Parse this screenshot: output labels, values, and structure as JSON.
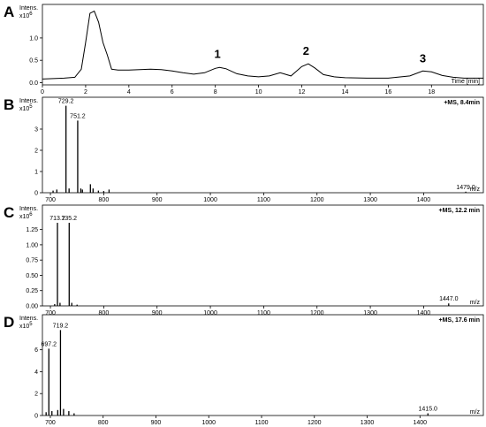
{
  "chart_data": [
    {
      "type": "line",
      "panel": "A",
      "y_unit": "Intens.",
      "y_scale": "x10",
      "y_exponent": 6,
      "xlabel": "Time [min]",
      "color": "#000000",
      "x": [
        0,
        0.5,
        1,
        1.5,
        1.8,
        2.0,
        2.2,
        2.4,
        2.6,
        2.8,
        3.0,
        3.2,
        3.5,
        4,
        4.5,
        5,
        5.5,
        6,
        6.5,
        7,
        7.5,
        8,
        8.2,
        8.5,
        9,
        9.5,
        10,
        10.5,
        11,
        11.5,
        12,
        12.3,
        12.6,
        13,
        13.5,
        14,
        15,
        16,
        17,
        17.6,
        18,
        18.5,
        19,
        19.5,
        20.4
      ],
      "values": [
        0.08,
        0.09,
        0.1,
        0.12,
        0.3,
        0.9,
        1.55,
        1.6,
        1.35,
        0.9,
        0.62,
        0.3,
        0.28,
        0.28,
        0.29,
        0.3,
        0.29,
        0.26,
        0.22,
        0.19,
        0.22,
        0.32,
        0.34,
        0.31,
        0.2,
        0.15,
        0.13,
        0.15,
        0.22,
        0.15,
        0.36,
        0.42,
        0.33,
        0.18,
        0.13,
        0.11,
        0.1,
        0.1,
        0.15,
        0.26,
        0.24,
        0.16,
        0.12,
        0.1,
        0.1
      ],
      "xlim": [
        0,
        20.4
      ],
      "ylim": [
        -0.05,
        1.75
      ],
      "xticks": [
        0,
        2,
        4,
        6,
        8,
        10,
        12,
        14,
        16,
        18
      ],
      "yticks": [
        {
          "value": 0,
          "label": "0.0"
        },
        {
          "value": 0.5,
          "label": "0.5"
        },
        {
          "value": 1,
          "label": "1.0"
        }
      ],
      "annotations": [
        "1",
        "2",
        "3"
      ]
    },
    {
      "type": "stick",
      "panel": "B",
      "y_unit": "Intens.",
      "y_scale": "x10",
      "y_exponent": 5,
      "xlabel": "m/z",
      "spectrum_label": "+MS, 8.4min",
      "color": "#000000",
      "x": [
        705,
        712,
        729.2,
        735,
        751.2,
        757,
        760,
        775,
        780,
        790,
        800,
        810,
        1479.0
      ],
      "values": [
        0.1,
        0.15,
        4.1,
        0.2,
        3.4,
        0.2,
        0.15,
        0.4,
        0.2,
        0.1,
        0.08,
        0.15,
        0.05
      ],
      "peak_labels": [
        null,
        null,
        "729.2",
        null,
        "751.2",
        null,
        null,
        null,
        null,
        null,
        null,
        null,
        "1479.0"
      ],
      "xlim": [
        685,
        1512
      ],
      "ylim": [
        0,
        4.5
      ],
      "xticks": [
        700,
        800,
        900,
        1000,
        1100,
        1200,
        1300,
        1400
      ],
      "yticks": [
        0,
        1,
        2,
        3
      ]
    },
    {
      "type": "stick",
      "panel": "C",
      "y_unit": "Intens.",
      "y_scale": "x10",
      "y_exponent": 6,
      "xlabel": "m/z",
      "spectrum_label": "+MS, 12.2 min",
      "color": "#000000",
      "x": [
        708,
        713.2,
        718,
        735.2,
        740,
        750,
        1447.0
      ],
      "values": [
        0.03,
        1.36,
        0.05,
        1.36,
        0.05,
        0.02,
        0.04
      ],
      "peak_labels": [
        null,
        "713.2",
        null,
        "735.2",
        null,
        null,
        "1447.0"
      ],
      "xlim": [
        685,
        1512
      ],
      "ylim": [
        0,
        1.65
      ],
      "xticks": [
        700,
        800,
        900,
        1000,
        1100,
        1200,
        1300,
        1400
      ],
      "yticks": [
        {
          "value": 0,
          "label": "0.00"
        },
        {
          "value": 0.25,
          "label": "0.25"
        },
        {
          "value": 0.5,
          "label": "0.50"
        },
        {
          "value": 0.75,
          "label": "0.75"
        },
        {
          "value": 1,
          "label": "1.00"
        },
        {
          "value": 1.25,
          "label": "1.25"
        }
      ]
    },
    {
      "type": "stick",
      "panel": "D",
      "y_unit": "Intens.",
      "y_scale": "x10",
      "y_exponent": 5,
      "xlabel": "m/z",
      "spectrum_label": "+MS, 17.6 min",
      "color": "#000000",
      "x": [
        692,
        697.2,
        703,
        714,
        719.2,
        725,
        735,
        745,
        1415.0
      ],
      "values": [
        0.3,
        6.1,
        0.4,
        0.5,
        7.8,
        0.6,
        0.4,
        0.2,
        0.2
      ],
      "peak_labels": [
        null,
        "697.2",
        null,
        null,
        "719.2",
        null,
        null,
        null,
        "1415.0"
      ],
      "xlim": [
        685,
        1520
      ],
      "ylim": [
        0,
        9.2
      ],
      "xticks": [
        700,
        800,
        900,
        1000,
        1100,
        1200,
        1300,
        1400
      ],
      "yticks": [
        0,
        2,
        4,
        6
      ]
    }
  ]
}
